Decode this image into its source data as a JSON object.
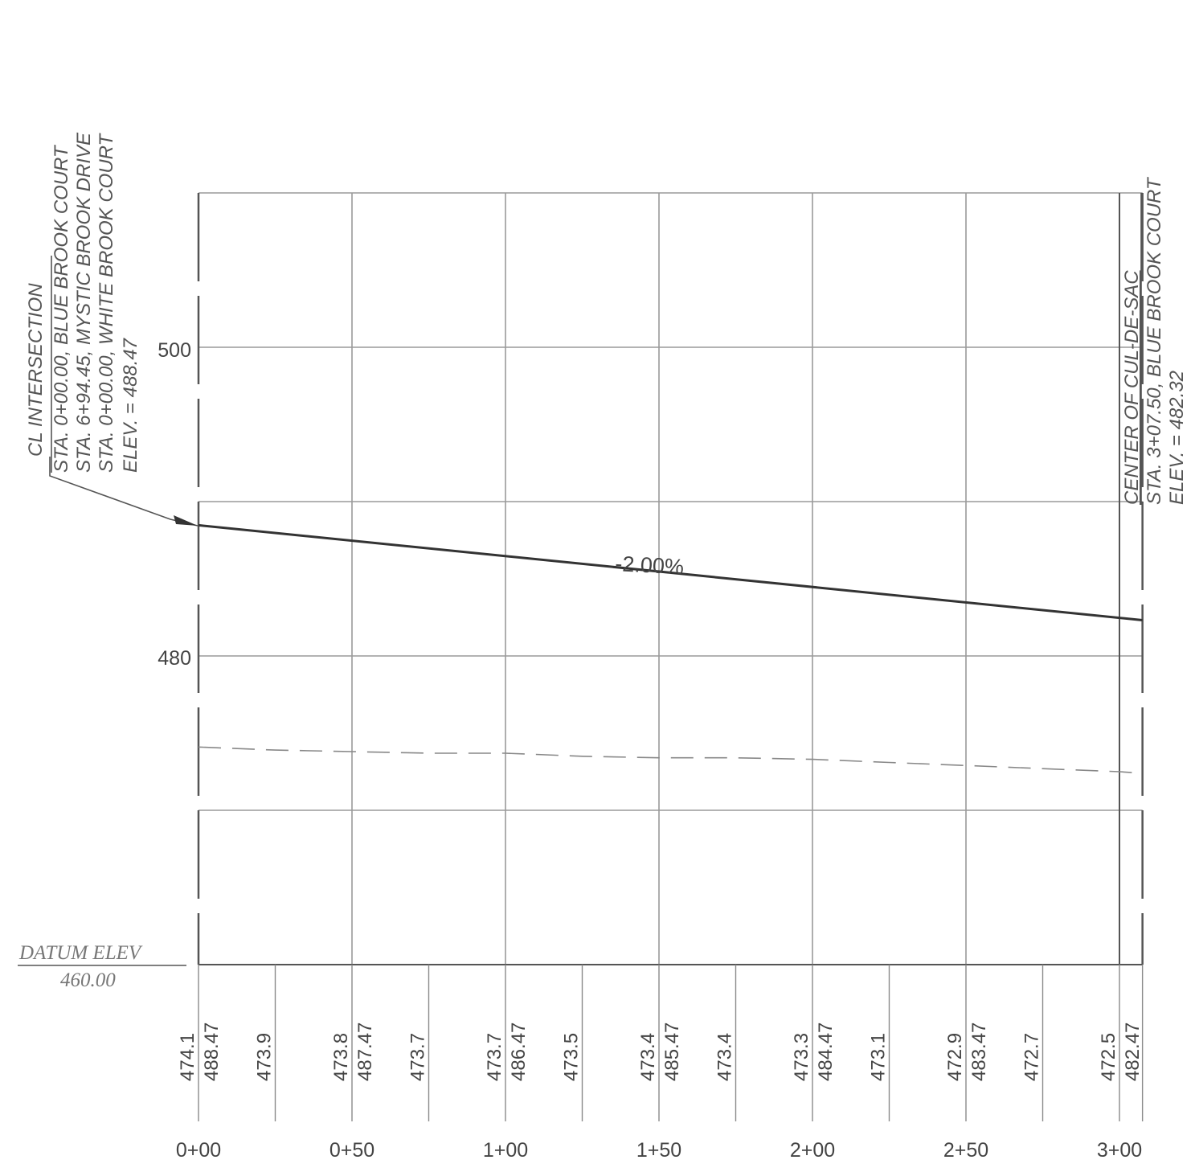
{
  "elevation_axis": {
    "tick_labels": [
      "500",
      "480"
    ]
  },
  "datum": {
    "label": "DATUM ELEV",
    "value": "460.00"
  },
  "station_labels": [
    "0+00",
    "0+50",
    "1+00",
    "1+50",
    "2+00",
    "2+50",
    "3+00"
  ],
  "grade_label": "-2.00%",
  "left_callout": {
    "title": "CL INTERSECTION",
    "lines": [
      "STA. 0+00.00, BLUE BROOK COURT",
      "STA. 6+94.45, MYSTIC BROOK DRIVE",
      "STA. 0+00.00, WHITE BROOK COURT",
      "ELEV. = 488.47"
    ]
  },
  "right_callout": {
    "title": "CENTER OF CUL-DE-SAC",
    "lines": [
      "STA. 3+07.50, BLUE BROOK COURT",
      "ELEV. = 482.32"
    ]
  },
  "existing_ground_values": [
    {
      "station": 0,
      "label": "474.1"
    },
    {
      "station": 25,
      "label": "473.9"
    },
    {
      "station": 50,
      "label": "473.8"
    },
    {
      "station": 75,
      "label": "473.7"
    },
    {
      "station": 100,
      "label": "473.7"
    },
    {
      "station": 125,
      "label": "473.5"
    },
    {
      "station": 150,
      "label": "473.4"
    },
    {
      "station": 175,
      "label": "473.4"
    },
    {
      "station": 200,
      "label": "473.3"
    },
    {
      "station": 225,
      "label": "473.1"
    },
    {
      "station": 250,
      "label": "472.9"
    },
    {
      "station": 275,
      "label": "472.7"
    },
    {
      "station": 300,
      "label": "472.5"
    }
  ],
  "proposed_grade_values": [
    {
      "station": 0,
      "label": "488.47"
    },
    {
      "station": 50,
      "label": "487.47"
    },
    {
      "station": 100,
      "label": "486.47"
    },
    {
      "station": 150,
      "label": "485.47"
    },
    {
      "station": 200,
      "label": "484.47"
    },
    {
      "station": 250,
      "label": "483.47"
    },
    {
      "station": 300,
      "label": "482.47"
    }
  ],
  "chart_data": {
    "type": "line",
    "x_unit": "ft (station)",
    "y_unit": "ft (elevation)",
    "xlim": [
      0,
      307.5
    ],
    "ylim": [
      460,
      510
    ],
    "series": [
      {
        "style": "solid",
        "x": [
          0,
          307.5
        ],
        "y": [
          488.47,
          482.32
        ]
      },
      {
        "style": "dashed",
        "x": [
          0,
          25,
          50,
          75,
          100,
          125,
          150,
          175,
          200,
          225,
          250,
          275,
          300,
          307.5
        ],
        "y": [
          474.1,
          473.9,
          473.8,
          473.7,
          473.7,
          473.5,
          473.4,
          473.4,
          473.3,
          473.1,
          472.9,
          472.7,
          472.5,
          472.4
        ]
      }
    ]
  }
}
